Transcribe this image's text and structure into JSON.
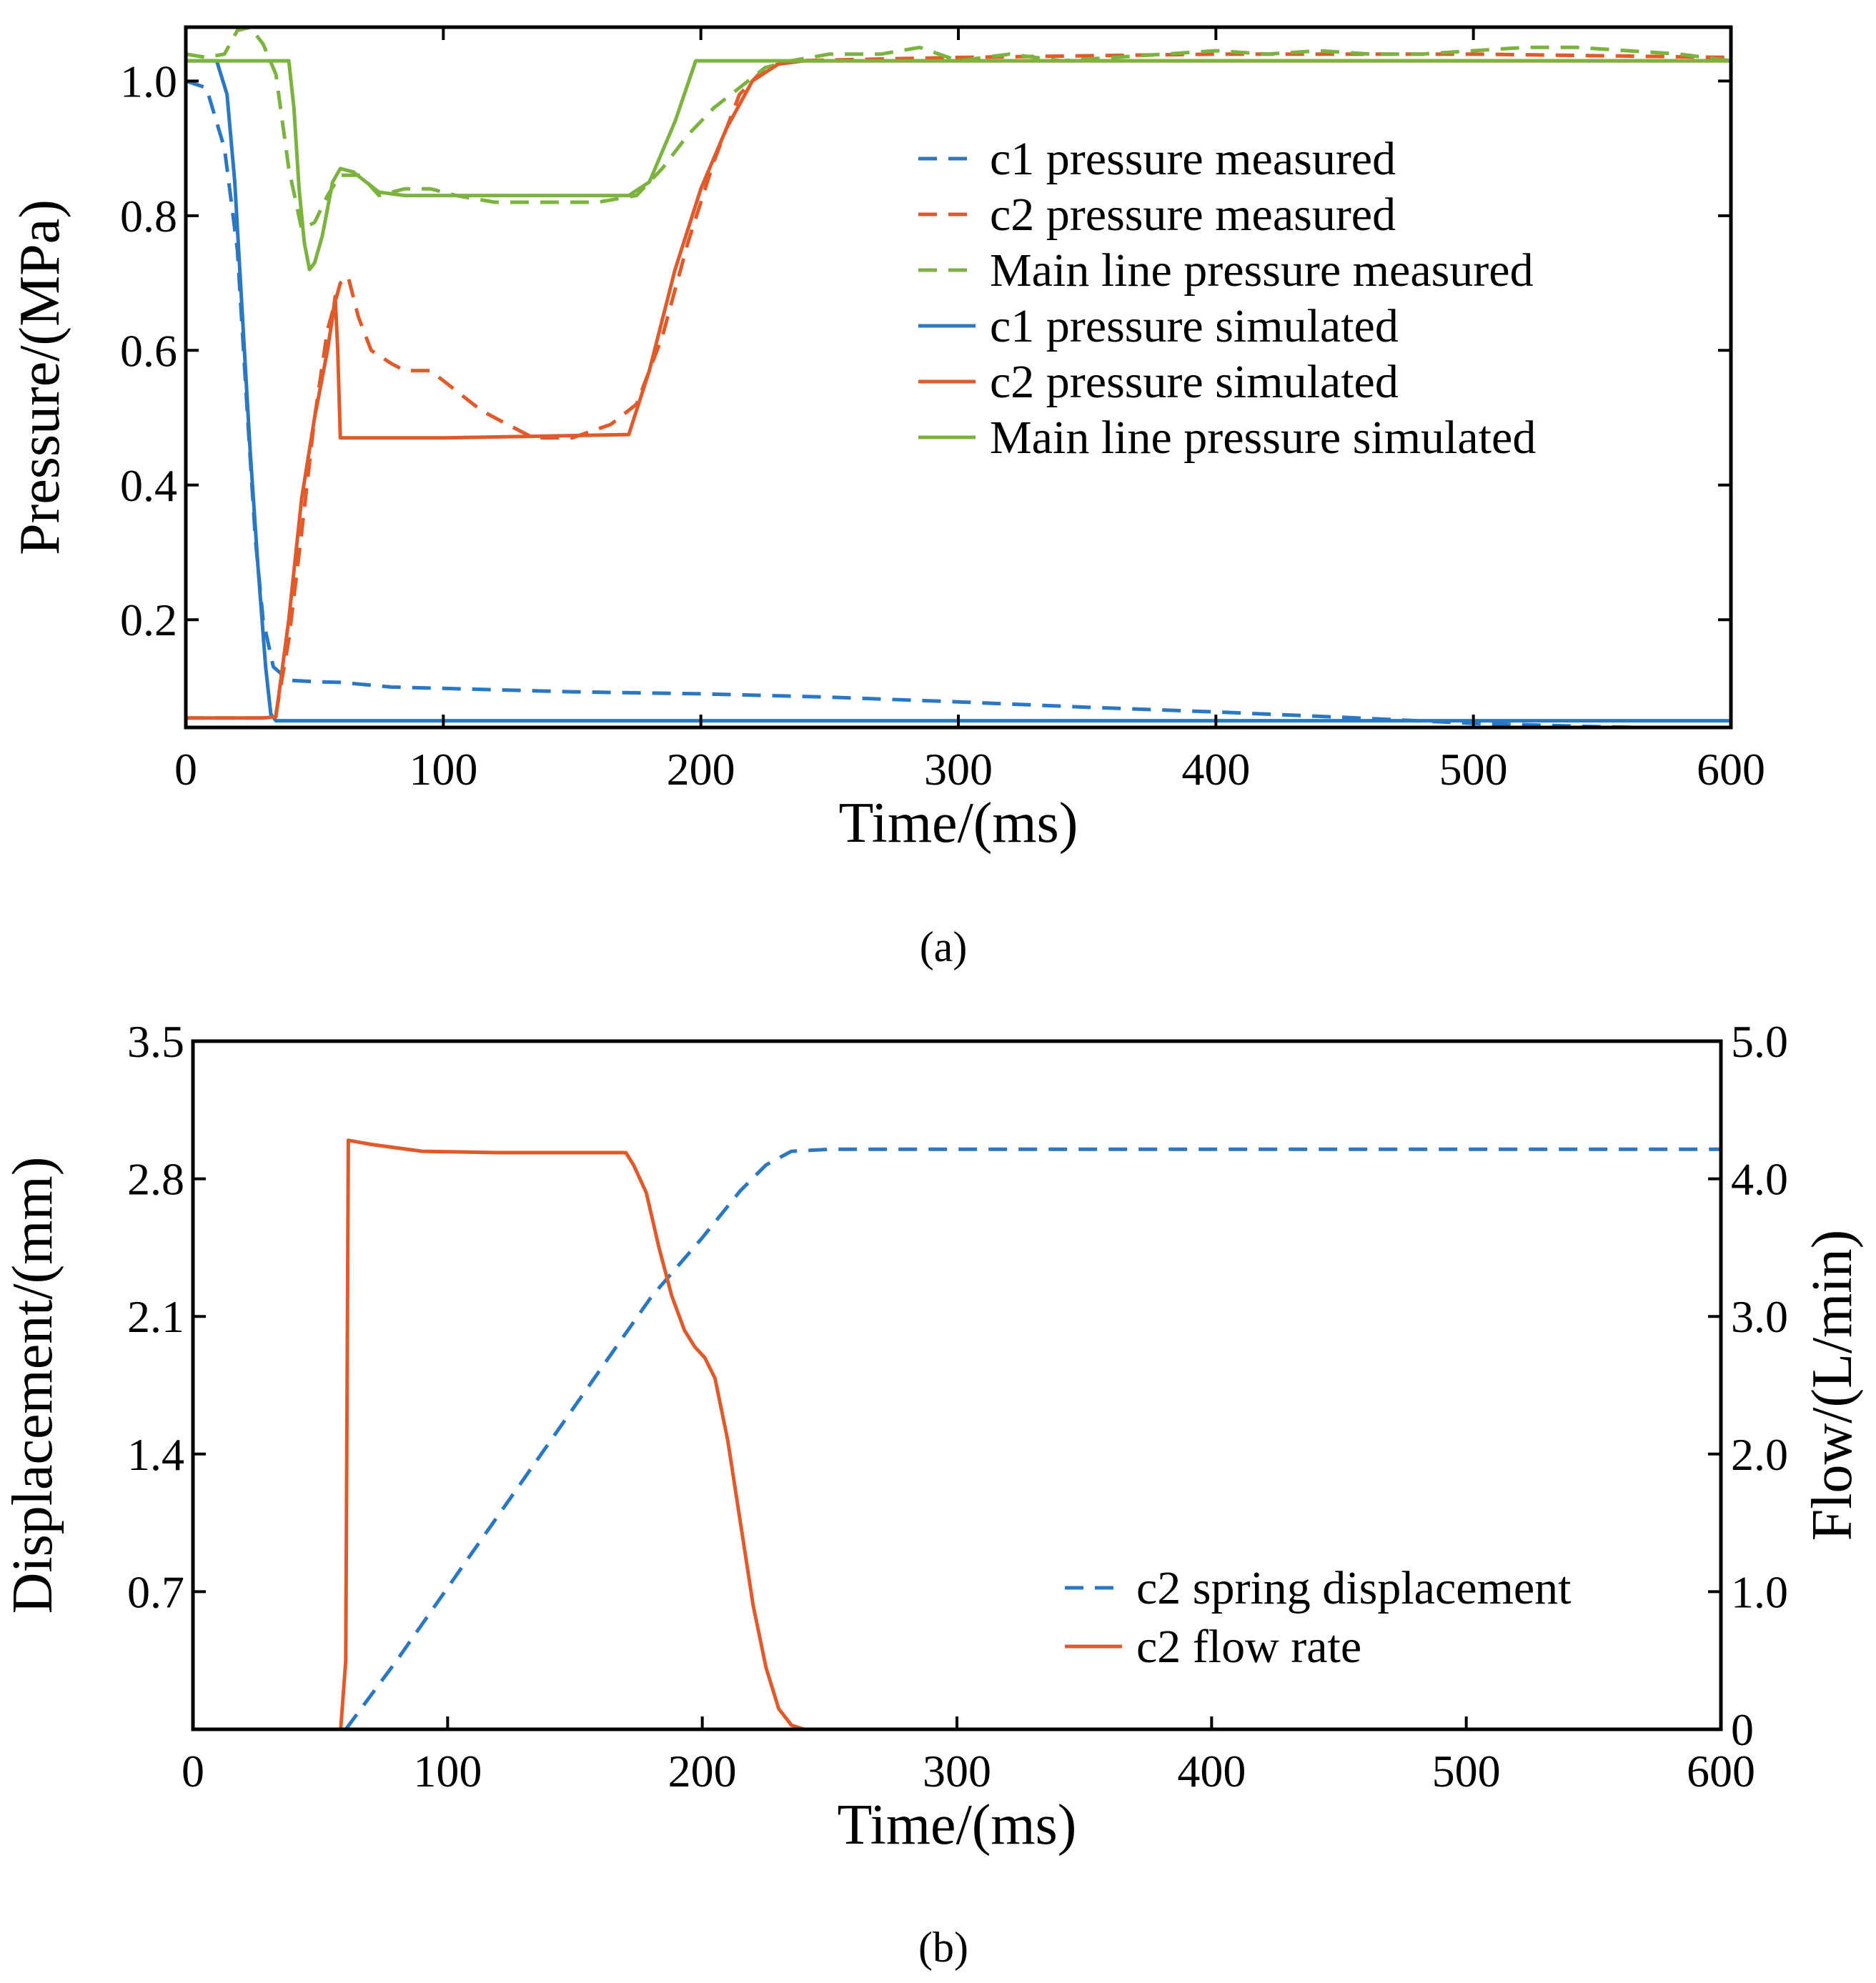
{
  "colors": {
    "blue": "#2a78c4",
    "orange": "#e2592a",
    "green": "#7cb33e",
    "axis": "#000000"
  },
  "chart_data": [
    {
      "id": "a",
      "type": "line",
      "panel_label": "(a)",
      "xlabel": "Time/(ms)",
      "ylabel": "Pressure/(MPa)",
      "xlim": [
        0,
        600
      ],
      "ylim": [
        0.04,
        1.08
      ],
      "xticks": [
        0,
        100,
        200,
        300,
        400,
        500,
        600
      ],
      "yticks": [
        0.2,
        0.4,
        0.6,
        0.8,
        1.0
      ],
      "ytick_labels": [
        "0.2",
        "0.4",
        "0.6",
        "0.8",
        "1.0"
      ],
      "grid": false,
      "legend_position": "upper-right",
      "series": [
        {
          "name": "c1 pressure measured",
          "style": "dashed",
          "color": "blue",
          "points": [
            [
              0,
              1.0
            ],
            [
              8,
              0.99
            ],
            [
              15,
              0.9
            ],
            [
              20,
              0.75
            ],
            [
              24,
              0.5
            ],
            [
              27,
              0.32
            ],
            [
              30,
              0.2
            ],
            [
              34,
              0.13
            ],
            [
              40,
              0.11
            ],
            [
              50,
              0.108
            ],
            [
              60,
              0.107
            ],
            [
              80,
              0.1
            ],
            [
              100,
              0.098
            ],
            [
              150,
              0.093
            ],
            [
              200,
              0.09
            ],
            [
              250,
              0.085
            ],
            [
              300,
              0.078
            ],
            [
              350,
              0.07
            ],
            [
              400,
              0.063
            ],
            [
              450,
              0.055
            ],
            [
              500,
              0.046
            ],
            [
              550,
              0.041
            ],
            [
              600,
              0.038
            ]
          ]
        },
        {
          "name": "c2 pressure measured",
          "style": "dashed",
          "color": "orange",
          "points": [
            [
              0,
              0.054
            ],
            [
              25,
              0.054
            ],
            [
              30,
              0.054
            ],
            [
              35,
              0.06
            ],
            [
              40,
              0.17
            ],
            [
              45,
              0.33
            ],
            [
              50,
              0.5
            ],
            [
              55,
              0.63
            ],
            [
              60,
              0.7
            ],
            [
              63,
              0.71
            ],
            [
              67,
              0.65
            ],
            [
              72,
              0.6
            ],
            [
              80,
              0.58
            ],
            [
              85,
              0.57
            ],
            [
              95,
              0.57
            ],
            [
              105,
              0.54
            ],
            [
              115,
              0.51
            ],
            [
              125,
              0.49
            ],
            [
              135,
              0.47
            ],
            [
              150,
              0.47
            ],
            [
              165,
              0.49
            ],
            [
              175,
              0.52
            ],
            [
              185,
              0.62
            ],
            [
              195,
              0.76
            ],
            [
              205,
              0.88
            ],
            [
              215,
              0.98
            ],
            [
              225,
              1.02
            ],
            [
              235,
              1.03
            ],
            [
              300,
              1.035
            ],
            [
              400,
              1.04
            ],
            [
              500,
              1.04
            ],
            [
              600,
              1.035
            ]
          ]
        },
        {
          "name": "Main line pressure measured",
          "style": "dashed",
          "color": "green",
          "points": [
            [
              0,
              1.04
            ],
            [
              8,
              1.035
            ],
            [
              15,
              1.04
            ],
            [
              20,
              1.075
            ],
            [
              25,
              1.08
            ],
            [
              30,
              1.055
            ],
            [
              35,
              1.01
            ],
            [
              40,
              0.87
            ],
            [
              45,
              0.78
            ],
            [
              50,
              0.79
            ],
            [
              55,
              0.83
            ],
            [
              60,
              0.86
            ],
            [
              68,
              0.86
            ],
            [
              75,
              0.83
            ],
            [
              85,
              0.84
            ],
            [
              95,
              0.84
            ],
            [
              105,
              0.83
            ],
            [
              120,
              0.82
            ],
            [
              140,
              0.82
            ],
            [
              160,
              0.82
            ],
            [
              175,
              0.83
            ],
            [
              185,
              0.87
            ],
            [
              195,
              0.92
            ],
            [
              205,
              0.96
            ],
            [
              215,
              0.99
            ],
            [
              225,
              1.02
            ],
            [
              235,
              1.03
            ],
            [
              250,
              1.04
            ],
            [
              270,
              1.04
            ],
            [
              285,
              1.05
            ],
            [
              300,
              1.03
            ],
            [
              320,
              1.04
            ],
            [
              340,
              1.03
            ],
            [
              360,
              1.035
            ],
            [
              380,
              1.04
            ],
            [
              400,
              1.045
            ],
            [
              420,
              1.04
            ],
            [
              440,
              1.045
            ],
            [
              460,
              1.04
            ],
            [
              480,
              1.04
            ],
            [
              500,
              1.045
            ],
            [
              520,
              1.05
            ],
            [
              540,
              1.05
            ],
            [
              560,
              1.045
            ],
            [
              580,
              1.04
            ],
            [
              600,
              1.03
            ]
          ]
        },
        {
          "name": "c1 pressure simulated",
          "style": "solid",
          "color": "blue",
          "points": [
            [
              0,
              1.03
            ],
            [
              12,
              1.03
            ],
            [
              16,
              0.98
            ],
            [
              19,
              0.85
            ],
            [
              22,
              0.65
            ],
            [
              25,
              0.45
            ],
            [
              28,
              0.28
            ],
            [
              31,
              0.13
            ],
            [
              33,
              0.06
            ],
            [
              35,
              0.05
            ],
            [
              100,
              0.05
            ],
            [
              200,
              0.05
            ],
            [
              300,
              0.05
            ],
            [
              400,
              0.05
            ],
            [
              500,
              0.05
            ],
            [
              600,
              0.05
            ]
          ]
        },
        {
          "name": "c2 pressure simulated",
          "style": "solid",
          "color": "orange",
          "points": [
            [
              0,
              0.054
            ],
            [
              30,
              0.054
            ],
            [
              35,
              0.056
            ],
            [
              40,
              0.2
            ],
            [
              45,
              0.38
            ],
            [
              50,
              0.5
            ],
            [
              55,
              0.6
            ],
            [
              57,
              0.65
            ],
            [
              58,
              0.68
            ],
            [
              59,
              0.6
            ],
            [
              60,
              0.47
            ],
            [
              100,
              0.47
            ],
            [
              172,
              0.475
            ],
            [
              180,
              0.57
            ],
            [
              190,
              0.72
            ],
            [
              200,
              0.84
            ],
            [
              210,
              0.93
            ],
            [
              220,
              1.0
            ],
            [
              230,
              1.025
            ],
            [
              240,
              1.03
            ],
            [
              600,
              1.03
            ]
          ]
        },
        {
          "name": "Main line pressure simulated",
          "style": "solid",
          "color": "green",
          "points": [
            [
              0,
              1.03
            ],
            [
              40,
              1.03
            ],
            [
              42,
              0.96
            ],
            [
              44,
              0.84
            ],
            [
              46,
              0.76
            ],
            [
              48,
              0.72
            ],
            [
              50,
              0.73
            ],
            [
              53,
              0.77
            ],
            [
              57,
              0.85
            ],
            [
              60,
              0.87
            ],
            [
              65,
              0.865
            ],
            [
              70,
              0.85
            ],
            [
              75,
              0.835
            ],
            [
              85,
              0.83
            ],
            [
              172,
              0.83
            ],
            [
              180,
              0.85
            ],
            [
              190,
              0.94
            ],
            [
              198,
              1.03
            ],
            [
              600,
              1.03
            ]
          ]
        }
      ]
    },
    {
      "id": "b",
      "type": "line",
      "panel_label": "(b)",
      "xlabel": "Time/(ms)",
      "ylabel": "Displacement/(mm)",
      "ylabel_right": "Flow/(L/min)",
      "xlim": [
        0,
        600
      ],
      "ylim": [
        0,
        3.5
      ],
      "ylim_right": [
        0,
        5.0
      ],
      "xticks": [
        0,
        100,
        200,
        300,
        400,
        500,
        600
      ],
      "yticks": [
        0.7,
        1.4,
        2.1,
        2.8,
        3.5
      ],
      "ytick_labels": [
        "0.7",
        "1.4",
        "2.1",
        "2.8",
        "3.5"
      ],
      "yticks_right": [
        0,
        1.0,
        2.0,
        3.0,
        4.0,
        5.0
      ],
      "ytick_labels_right": [
        "0",
        "1.0",
        "2.0",
        "3.0",
        "4.0",
        "5.0"
      ],
      "grid": false,
      "legend_position": "lower-right",
      "series": [
        {
          "name": "c2 spring displacement",
          "style": "dashed",
          "color": "blue",
          "axis": "left",
          "points": [
            [
              60,
              0
            ],
            [
              80,
              0.35
            ],
            [
              100,
              0.72
            ],
            [
              120,
              1.09
            ],
            [
              140,
              1.46
            ],
            [
              160,
              1.83
            ],
            [
              180,
              2.2
            ],
            [
              200,
              2.5
            ],
            [
              215,
              2.74
            ],
            [
              225,
              2.87
            ],
            [
              235,
              2.94
            ],
            [
              250,
              2.95
            ],
            [
              300,
              2.95
            ],
            [
              400,
              2.95
            ],
            [
              500,
              2.95
            ],
            [
              600,
              2.95
            ]
          ]
        },
        {
          "name": "c2 flow rate",
          "style": "solid",
          "color": "orange",
          "axis": "right",
          "points": [
            [
              0,
              0
            ],
            [
              58,
              0
            ],
            [
              60,
              0.5
            ],
            [
              61,
              4.28
            ],
            [
              70,
              4.25
            ],
            [
              90,
              4.2
            ],
            [
              120,
              4.19
            ],
            [
              150,
              4.19
            ],
            [
              170,
              4.19
            ],
            [
              173,
              4.1
            ],
            [
              178,
              3.9
            ],
            [
              183,
              3.5
            ],
            [
              188,
              3.15
            ],
            [
              193,
              2.9
            ],
            [
              197,
              2.78
            ],
            [
              201,
              2.7
            ],
            [
              205,
              2.55
            ],
            [
              210,
              2.1
            ],
            [
              215,
              1.5
            ],
            [
              220,
              0.9
            ],
            [
              225,
              0.45
            ],
            [
              230,
              0.15
            ],
            [
              235,
              0.03
            ],
            [
              240,
              0
            ],
            [
              600,
              0
            ]
          ]
        }
      ]
    }
  ]
}
